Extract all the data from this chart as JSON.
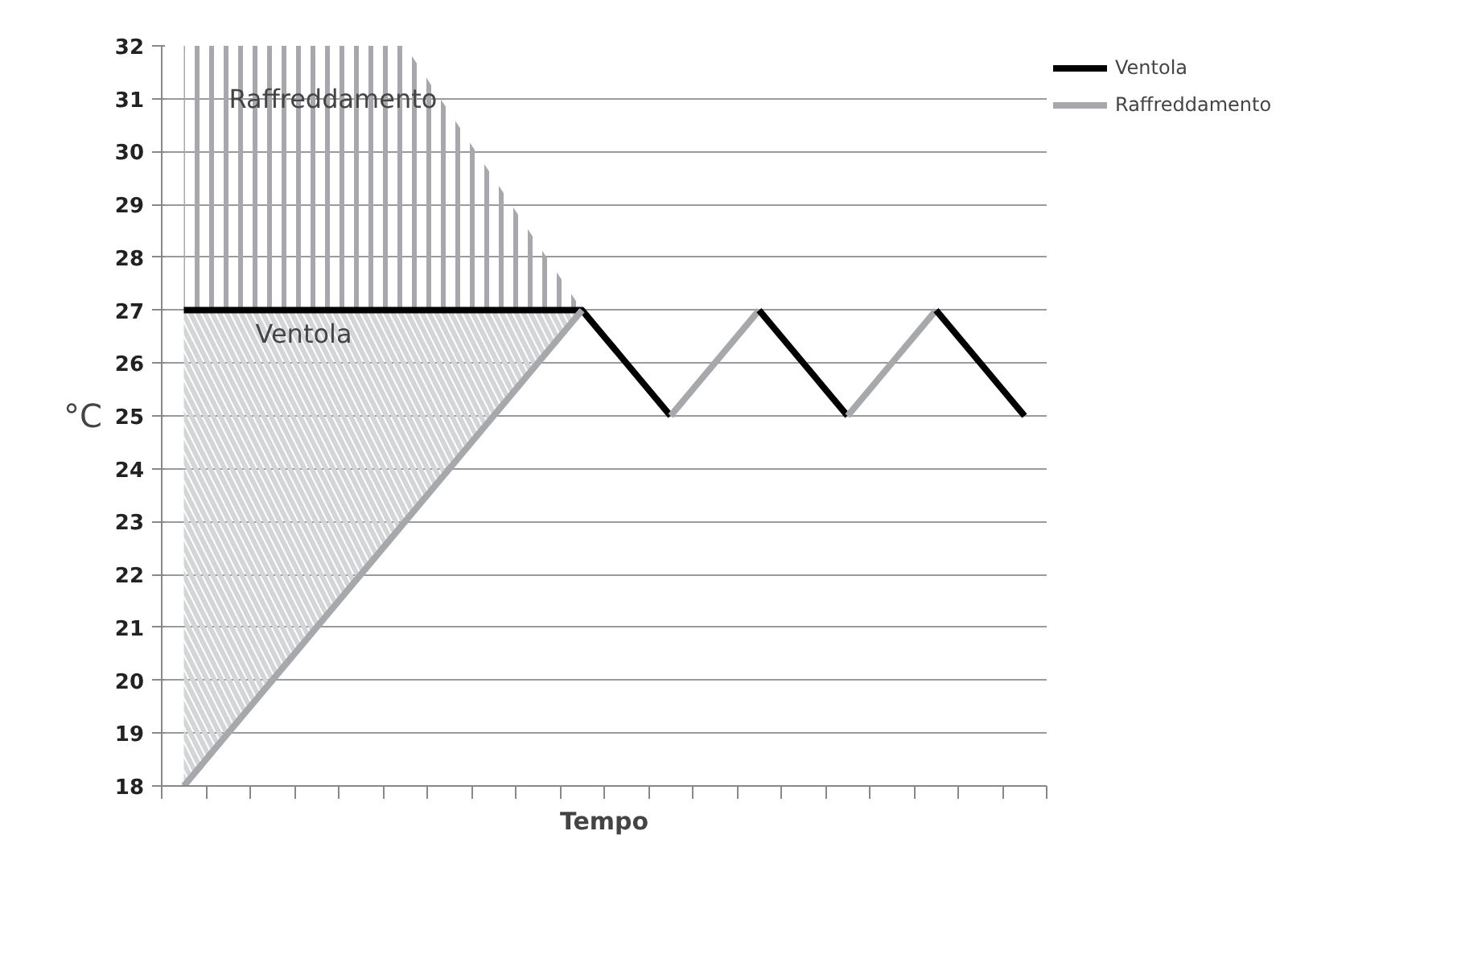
{
  "chart_data": {
    "type": "line",
    "xlabel": "Tempo",
    "ylabel": "°C",
    "categories": [
      null,
      null,
      null,
      null,
      null,
      null,
      null,
      null,
      null,
      null,
      null,
      null,
      null,
      null,
      null,
      null,
      null,
      null,
      null,
      null
    ],
    "ylim": [
      18,
      32
    ],
    "yticks": [
      18,
      19,
      20,
      21,
      22,
      23,
      24,
      25,
      26,
      27,
      28,
      29,
      30,
      31,
      32
    ],
    "grid": "y",
    "legend": "right",
    "series": [
      {
        "name": "Ventola",
        "color": "#000000",
        "values": [
          27,
          27,
          27,
          27,
          27,
          27,
          27,
          27,
          27,
          27,
          26,
          25,
          null,
          null,
          null,
          null,
          null,
          null,
          null,
          null
        ],
        "lower": [
          27,
          27,
          27,
          27,
          27,
          27,
          27,
          27,
          27,
          27,
          null,
          null,
          null,
          null,
          null,
          null,
          null,
          null,
          null,
          null
        ],
        "upper": [
          32,
          32,
          32,
          32,
          32,
          32,
          30.75,
          29.5,
          28.25,
          27,
          null,
          null,
          null,
          null,
          null,
          null,
          null,
          null,
          null,
          null
        ]
      },
      {
        "name": "Raffreddamento",
        "color": "#a6a8ab",
        "values": [
          18,
          19,
          20,
          21,
          22,
          23,
          24,
          25,
          26,
          27,
          null,
          null,
          null,
          null,
          null,
          null,
          null,
          null,
          null,
          null
        ],
        "lower": [
          18,
          19,
          20,
          21,
          22,
          23,
          24,
          25,
          26,
          27,
          null,
          null,
          null,
          null,
          null,
          null,
          null,
          null,
          null,
          null
        ],
        "upper": [
          27,
          27,
          27,
          27,
          27,
          27,
          27,
          27,
          27,
          27,
          null,
          null,
          null,
          null,
          null,
          null,
          null,
          null,
          null,
          null
        ]
      },
      {
        "color": "#a6a8ab",
        "values": [
          null,
          null,
          null,
          null,
          null,
          null,
          null,
          null,
          null,
          null,
          null,
          25,
          26,
          27,
          null,
          null,
          null,
          null,
          null,
          null
        ]
      },
      {
        "color": "#000000",
        "values": [
          null,
          null,
          null,
          null,
          null,
          null,
          null,
          null,
          null,
          null,
          null,
          null,
          null,
          27,
          26,
          25,
          null,
          null,
          null,
          null
        ]
      },
      {
        "color": "#a6a8ab",
        "values": [
          null,
          null,
          null,
          null,
          null,
          null,
          null,
          null,
          null,
          null,
          null,
          null,
          null,
          null,
          null,
          25,
          26,
          27,
          null,
          null
        ]
      },
      {
        "color": "#000000",
        "values": [
          null,
          null,
          null,
          null,
          null,
          null,
          null,
          null,
          null,
          null,
          null,
          null,
          null,
          null,
          null,
          null,
          null,
          27,
          26,
          25
        ]
      }
    ],
    "annotations": [
      "Raffreddamento",
      "Ventola"
    ]
  }
}
